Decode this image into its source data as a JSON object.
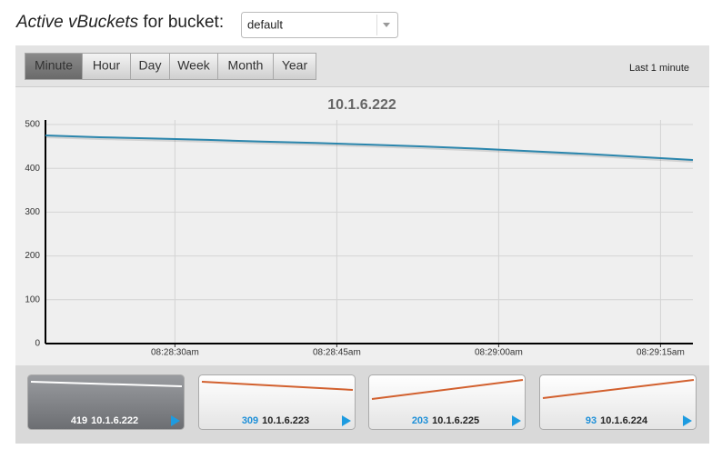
{
  "header": {
    "title": "Active vBuckets",
    "label": "for bucket:",
    "bucket": "default"
  },
  "toolbar": {
    "buttons": [
      "Minute",
      "Hour",
      "Day",
      "Week",
      "Month",
      "Year"
    ],
    "selected": 0,
    "range": "Last 1 minute"
  },
  "chart_data": {
    "type": "line",
    "title": "10.1.6.222",
    "x": [
      "08:28:18am",
      "08:28:23am",
      "08:28:28am",
      "08:28:33am",
      "08:28:38am",
      "08:28:43am",
      "08:28:48am",
      "08:28:53am",
      "08:28:58am",
      "08:29:03am",
      "08:29:08am",
      "08:29:13am",
      "08:29:18am"
    ],
    "values": [
      475,
      471,
      468,
      465,
      461,
      458,
      454,
      450,
      445,
      439,
      433,
      426,
      419
    ],
    "color": "#2b86ad",
    "xlim": [
      "08:28:18am",
      "08:29:18am"
    ],
    "xticks": [
      "08:28:30am",
      "08:28:45am",
      "08:29:00am",
      "08:29:15am"
    ],
    "ylim": [
      0,
      500
    ],
    "yticks": [
      0,
      100,
      200,
      300,
      400,
      500
    ],
    "grid": true
  },
  "servers": [
    {
      "value": 419,
      "name": "10.1.6.222"
    },
    {
      "value": 309,
      "name": "10.1.6.223"
    },
    {
      "value": 203,
      "name": "10.1.6.225"
    },
    {
      "value": 93,
      "name": "10.1.6.224"
    }
  ]
}
